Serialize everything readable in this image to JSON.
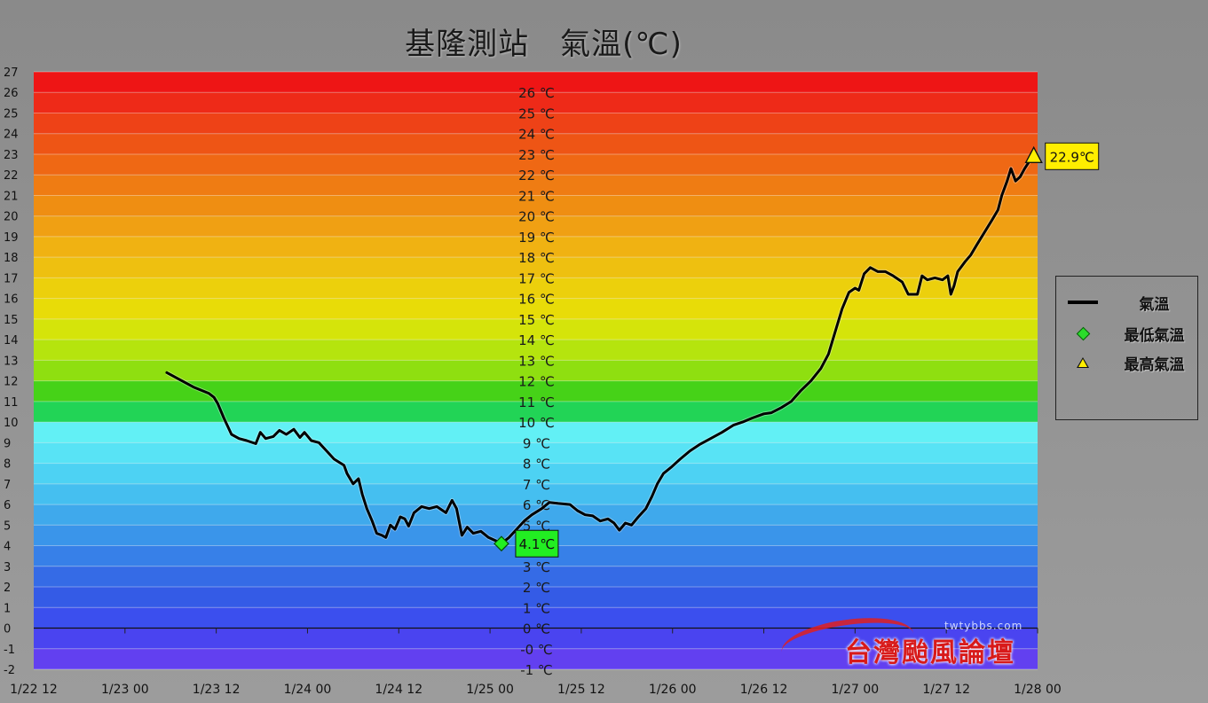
{
  "title": "基隆測站　氣溫(℃)",
  "legend": {
    "series_label": "氣溫",
    "min_label": "最低氣溫",
    "max_label": "最高氣溫"
  },
  "watermark": {
    "text": "台灣颱風論壇",
    "small": "twtybbs.com"
  },
  "chart_data": {
    "type": "line",
    "title": "基隆測站　氣溫(℃)",
    "xlabel": "",
    "ylabel": "",
    "ylim": [
      -2,
      27
    ],
    "xlim_hours": [
      0,
      132
    ],
    "x_tick_labels": [
      "1/22 12",
      "1/23 00",
      "1/23 12",
      "1/24 00",
      "1/24 12",
      "1/25 00",
      "1/25 12",
      "1/26 00",
      "1/26 12",
      "1/27 00",
      "1/27 12",
      "1/28 00"
    ],
    "y_ticks": [
      -2,
      -1,
      0,
      1,
      2,
      3,
      4,
      5,
      6,
      7,
      8,
      9,
      10,
      11,
      12,
      13,
      14,
      15,
      16,
      17,
      18,
      19,
      20,
      21,
      22,
      23,
      24,
      25,
      26,
      27
    ],
    "band_labels": [
      "26 ℃",
      "25 ℃",
      "24 ℃",
      "23 ℃",
      "22 ℃",
      "21 ℃",
      "20 ℃",
      "19 ℃",
      "18 ℃",
      "17 ℃",
      "16 ℃",
      "15 ℃",
      "14 ℃",
      "13 ℃",
      "12 ℃",
      "11 ℃",
      "10 ℃",
      "9 ℃",
      "8 ℃",
      "7 ℃",
      "6 ℃",
      "5 ℃",
      "4 ℃",
      "3 ℃",
      "2 ℃",
      "1 ℃",
      "0 ℃",
      "-0 ℃",
      "-1 ℃"
    ],
    "band_colors": {
      "26": "#ee1515",
      "25": "#ee2a18",
      "24": "#ee4217",
      "23": "#ee5515",
      "22": "#ef6814",
      "21": "#ef7c13",
      "20": "#ef8e12",
      "19": "#f0a013",
      "18": "#f0b212",
      "17": "#eec010",
      "16": "#ecd00c",
      "15": "#e8dc08",
      "14": "#d5e40a",
      "13": "#b5e40e",
      "12": "#8fdf10",
      "11": "#46d218",
      "10": "#22d456",
      "9": "#62f0f5",
      "8": "#58e3f5",
      "7": "#4dd2f3",
      "6": "#45bff0",
      "5": "#3fa9ec",
      "4": "#3a95ea",
      "3": "#3780e8",
      "2": "#356be6",
      "1": "#345be6",
      "0": "#3b4fee",
      "-1": "#4a44f0",
      "-2": "#6240f0"
    },
    "series": [
      {
        "name": "氣溫",
        "color": "#000000",
        "points": [
          [
            17.5,
            12.4
          ],
          [
            19,
            12.1
          ],
          [
            21,
            11.7
          ],
          [
            23,
            11.4
          ],
          [
            23.7,
            11.2
          ],
          [
            24.2,
            10.9
          ],
          [
            25,
            10.2
          ],
          [
            26,
            9.4
          ],
          [
            27,
            9.2
          ],
          [
            28,
            9.1
          ],
          [
            29.2,
            8.95
          ],
          [
            29.8,
            9.5
          ],
          [
            30.5,
            9.2
          ],
          [
            31.5,
            9.3
          ],
          [
            32.3,
            9.6
          ],
          [
            33.2,
            9.4
          ],
          [
            34.2,
            9.65
          ],
          [
            35,
            9.25
          ],
          [
            35.6,
            9.5
          ],
          [
            36.5,
            9.1
          ],
          [
            37.5,
            9.0
          ],
          [
            38.5,
            8.6
          ],
          [
            39.5,
            8.2
          ],
          [
            40.8,
            7.9
          ],
          [
            41.2,
            7.5
          ],
          [
            42,
            7.0
          ],
          [
            42.7,
            7.25
          ],
          [
            43.2,
            6.5
          ],
          [
            43.8,
            5.8
          ],
          [
            44.5,
            5.2
          ],
          [
            45.1,
            4.6
          ],
          [
            45.8,
            4.5
          ],
          [
            46.3,
            4.4
          ],
          [
            46.9,
            5.0
          ],
          [
            47.5,
            4.8
          ],
          [
            48.2,
            5.4
          ],
          [
            48.8,
            5.3
          ],
          [
            49.3,
            4.95
          ],
          [
            50,
            5.6
          ],
          [
            51,
            5.9
          ],
          [
            52,
            5.8
          ],
          [
            53,
            5.9
          ],
          [
            54.2,
            5.6
          ],
          [
            55,
            6.2
          ],
          [
            55.6,
            5.8
          ],
          [
            56.3,
            4.5
          ],
          [
            57,
            4.9
          ],
          [
            57.8,
            4.6
          ],
          [
            58.8,
            4.7
          ],
          [
            59.8,
            4.4
          ],
          [
            60.7,
            4.25
          ],
          [
            61.5,
            4.1
          ],
          [
            62.5,
            4.4
          ],
          [
            63.5,
            4.8
          ],
          [
            64.5,
            5.2
          ],
          [
            65.5,
            5.5
          ],
          [
            66.8,
            5.8
          ],
          [
            67.8,
            6.1
          ],
          [
            69,
            6.05
          ],
          [
            70.5,
            6.0
          ],
          [
            71.5,
            5.7
          ],
          [
            72.5,
            5.5
          ],
          [
            73.5,
            5.45
          ],
          [
            74.5,
            5.2
          ],
          [
            75.5,
            5.3
          ],
          [
            76.3,
            5.1
          ],
          [
            77,
            4.75
          ],
          [
            77.8,
            5.1
          ],
          [
            78.6,
            5.0
          ],
          [
            79.5,
            5.4
          ],
          [
            80.5,
            5.8
          ],
          [
            81.3,
            6.4
          ],
          [
            82,
            7.0
          ],
          [
            82.8,
            7.5
          ],
          [
            83.8,
            7.8
          ],
          [
            85,
            8.2
          ],
          [
            86.3,
            8.6
          ],
          [
            87.5,
            8.9
          ],
          [
            89,
            9.2
          ],
          [
            90.5,
            9.5
          ],
          [
            92,
            9.85
          ],
          [
            93.2,
            10.0
          ],
          [
            94.5,
            10.2
          ],
          [
            96,
            10.4
          ],
          [
            97,
            10.45
          ],
          [
            98.3,
            10.7
          ],
          [
            99.6,
            11.0
          ],
          [
            100.8,
            11.5
          ],
          [
            102.2,
            12.0
          ],
          [
            103.5,
            12.6
          ],
          [
            104.5,
            13.3
          ],
          [
            105.4,
            14.4
          ],
          [
            106.3,
            15.5
          ],
          [
            107.2,
            16.3
          ],
          [
            108,
            16.5
          ],
          [
            108.5,
            16.4
          ],
          [
            109.2,
            17.2
          ],
          [
            110,
            17.5
          ],
          [
            111,
            17.3
          ],
          [
            112,
            17.3
          ],
          [
            113,
            17.1
          ],
          [
            114.2,
            16.8
          ],
          [
            115,
            16.2
          ],
          [
            116.2,
            16.2
          ],
          [
            116.8,
            17.1
          ],
          [
            117.5,
            16.9
          ],
          [
            118.5,
            17.0
          ],
          [
            119.5,
            16.9
          ],
          [
            120.2,
            17.1
          ],
          [
            120.6,
            16.2
          ],
          [
            121,
            16.6
          ],
          [
            121.5,
            17.3
          ],
          [
            122.5,
            17.8
          ],
          [
            123.2,
            18.1
          ],
          [
            124,
            18.6
          ],
          [
            125,
            19.2
          ],
          [
            126,
            19.8
          ],
          [
            126.8,
            20.3
          ],
          [
            127.3,
            21.0
          ],
          [
            128,
            21.7
          ],
          [
            128.5,
            22.3
          ],
          [
            129.1,
            21.7
          ],
          [
            129.7,
            21.9
          ],
          [
            130.3,
            22.3
          ],
          [
            131,
            22.7
          ]
        ]
      }
    ],
    "min_point": {
      "x": 61.5,
      "y": 4.1,
      "label": "4.1℃",
      "color": "#22ee22"
    },
    "max_point": {
      "x": 131.5,
      "y": 22.9,
      "label": "22.9℃",
      "color": "#ffee00"
    }
  }
}
